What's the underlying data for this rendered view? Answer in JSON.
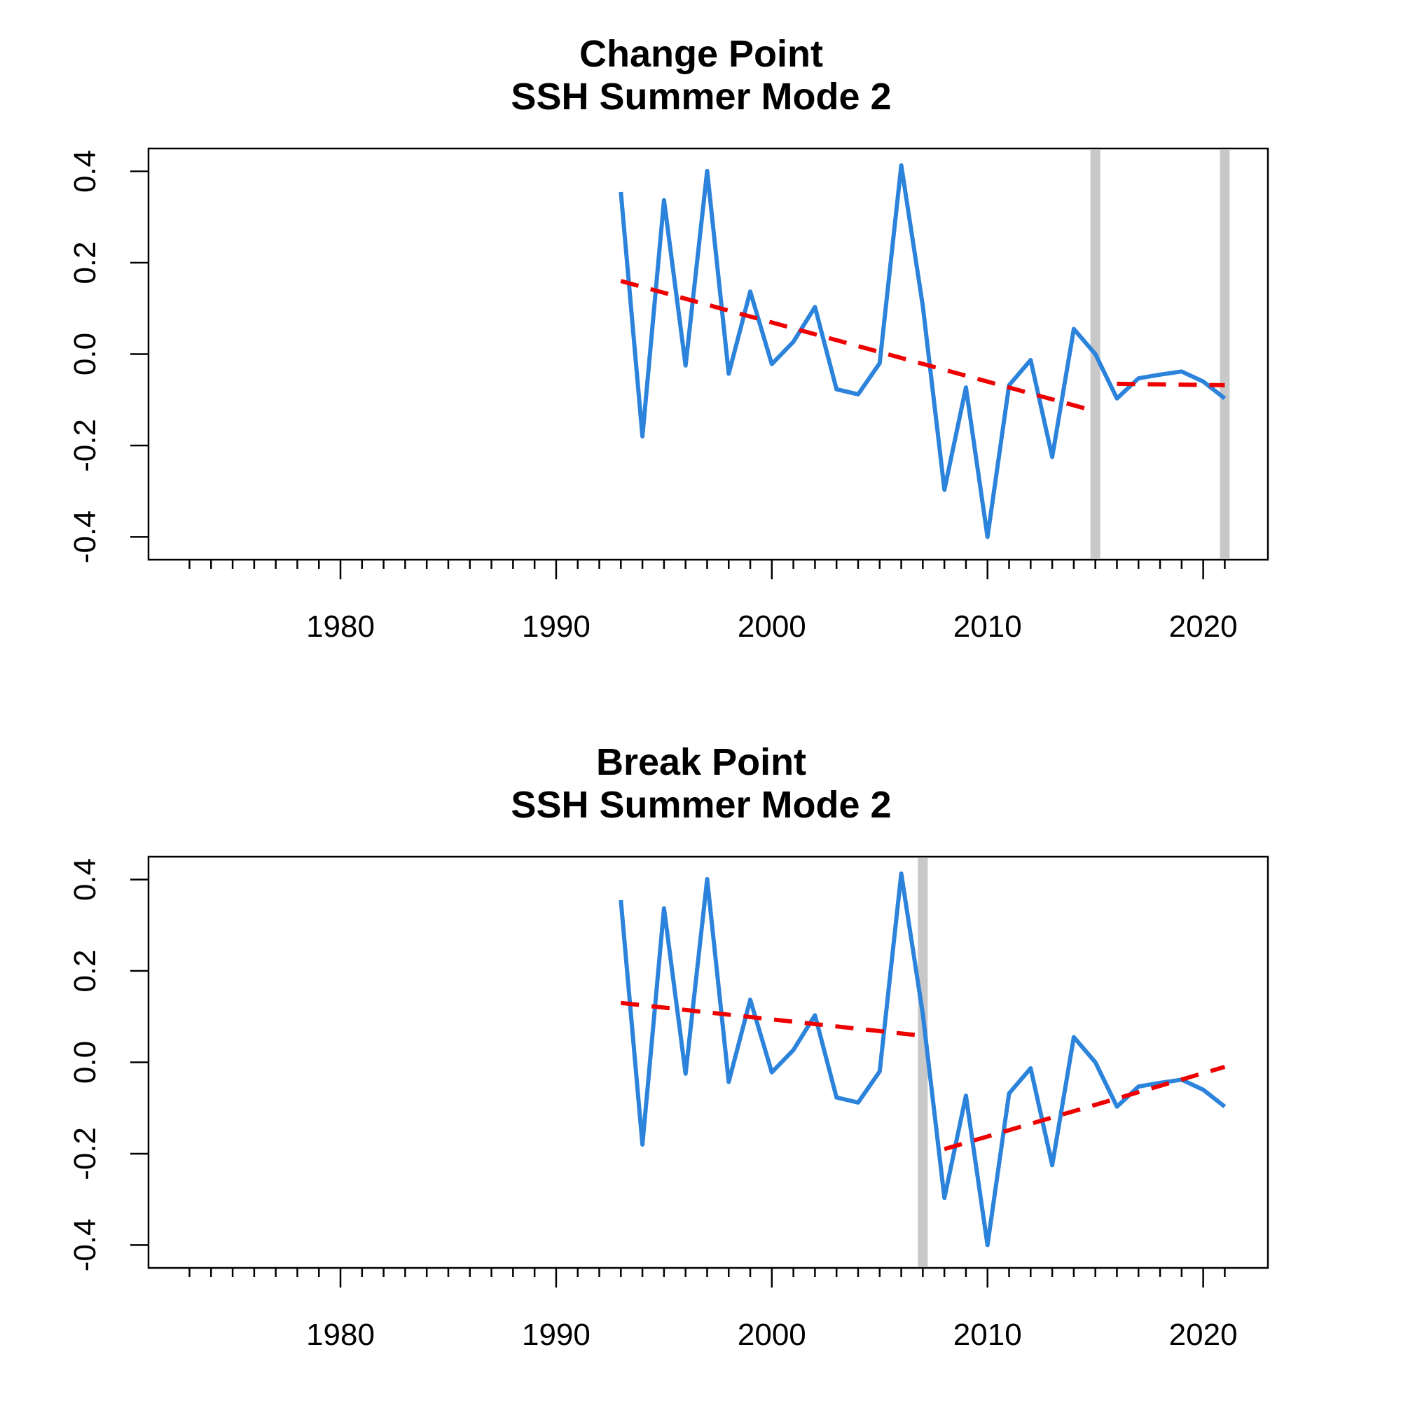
{
  "chart_data": [
    {
      "type": "line",
      "title": [
        "Change Point",
        "SSH Summer Mode 2"
      ],
      "xlim": [
        1971.1,
        2023.0
      ],
      "ylim": [
        -0.45,
        0.45
      ],
      "x_ticks": [
        1980,
        1990,
        2000,
        2010,
        2020
      ],
      "x_minor_ticks": [
        1973,
        1974,
        1975,
        1976,
        1977,
        1978,
        1979,
        1980,
        1981,
        1982,
        1983,
        1984,
        1985,
        1986,
        1987,
        1988,
        1989,
        1990,
        1991,
        1992,
        1993,
        1994,
        1995,
        1996,
        1997,
        1998,
        1999,
        2000,
        2001,
        2002,
        2003,
        2004,
        2005,
        2006,
        2007,
        2008,
        2009,
        2010,
        2011,
        2012,
        2013,
        2014,
        2015,
        2016,
        2017,
        2018,
        2019,
        2020,
        2021
      ],
      "y_ticks": [
        -0.4,
        -0.2,
        0.0,
        0.2,
        0.4
      ],
      "y_tick_labels": [
        "-0.4",
        "-0.2",
        "0.0",
        "0.2",
        "0.4"
      ],
      "x_tick_labels": [
        "1980",
        "1990",
        "2000",
        "2010",
        "2020"
      ],
      "grid": false,
      "series": [
        {
          "x": [
            1993,
            1994,
            1995,
            1996,
            1997,
            1998,
            1999,
            2000,
            2001,
            2002,
            2003,
            2004,
            2005,
            2006,
            2007,
            2008,
            2009,
            2010,
            2011,
            2012,
            2013,
            2014,
            2015,
            2016,
            2017,
            2018,
            2019,
            2020,
            2021
          ],
          "values": [
            0.355,
            -0.18,
            0.337,
            -0.025,
            0.401,
            -0.043,
            0.137,
            -0.022,
            0.027,
            0.103,
            -0.077,
            -0.088,
            -0.02,
            0.413,
            0.105,
            -0.297,
            -0.073,
            -0.4,
            -0.068,
            -0.013,
            -0.225,
            0.055,
            0.0,
            -0.097,
            -0.053,
            -0.045,
            -0.038,
            -0.06,
            -0.097
          ],
          "color": "#2b83db"
        }
      ],
      "trend_segments": [
        {
          "x": [
            1993,
            2015
          ],
          "y": [
            0.16,
            -0.125
          ],
          "color": "#ee0000"
        },
        {
          "x": [
            2016,
            2021
          ],
          "y": [
            -0.065,
            -0.068
          ],
          "color": "#ee0000"
        }
      ],
      "change_points": [
        2015,
        2021
      ],
      "change_point_color": "#c8c8c8"
    },
    {
      "type": "line",
      "title": [
        "Break Point",
        "SSH Summer Mode 2"
      ],
      "xlim": [
        1971.1,
        2023.0
      ],
      "ylim": [
        -0.45,
        0.45
      ],
      "x_ticks": [
        1980,
        1990,
        2000,
        2010,
        2020
      ],
      "x_minor_ticks": [
        1973,
        1974,
        1975,
        1976,
        1977,
        1978,
        1979,
        1980,
        1981,
        1982,
        1983,
        1984,
        1985,
        1986,
        1987,
        1988,
        1989,
        1990,
        1991,
        1992,
        1993,
        1994,
        1995,
        1996,
        1997,
        1998,
        1999,
        2000,
        2001,
        2002,
        2003,
        2004,
        2005,
        2006,
        2007,
        2008,
        2009,
        2010,
        2011,
        2012,
        2013,
        2014,
        2015,
        2016,
        2017,
        2018,
        2019,
        2020,
        2021
      ],
      "y_ticks": [
        -0.4,
        -0.2,
        0.0,
        0.2,
        0.4
      ],
      "y_tick_labels": [
        "-0.4",
        "-0.2",
        "0.0",
        "0.2",
        "0.4"
      ],
      "x_tick_labels": [
        "1980",
        "1990",
        "2000",
        "2010",
        "2020"
      ],
      "grid": false,
      "series": [
        {
          "x": [
            1993,
            1994,
            1995,
            1996,
            1997,
            1998,
            1999,
            2000,
            2001,
            2002,
            2003,
            2004,
            2005,
            2006,
            2007,
            2008,
            2009,
            2010,
            2011,
            2012,
            2013,
            2014,
            2015,
            2016,
            2017,
            2018,
            2019,
            2020,
            2021
          ],
          "values": [
            0.355,
            -0.18,
            0.337,
            -0.025,
            0.401,
            -0.043,
            0.137,
            -0.022,
            0.027,
            0.103,
            -0.077,
            -0.088,
            -0.02,
            0.413,
            0.105,
            -0.297,
            -0.073,
            -0.4,
            -0.068,
            -0.013,
            -0.225,
            0.055,
            0.0,
            -0.097,
            -0.053,
            -0.045,
            -0.038,
            -0.06,
            -0.097
          ],
          "color": "#2b83db"
        }
      ],
      "trend_segments": [
        {
          "x": [
            1993,
            2007
          ],
          "y": [
            0.13,
            0.058
          ],
          "color": "#ee0000"
        },
        {
          "x": [
            2008,
            2021
          ],
          "y": [
            -0.19,
            -0.01
          ],
          "color": "#ee0000"
        }
      ],
      "change_points": [
        2007
      ],
      "change_point_color": "#c8c8c8"
    }
  ]
}
